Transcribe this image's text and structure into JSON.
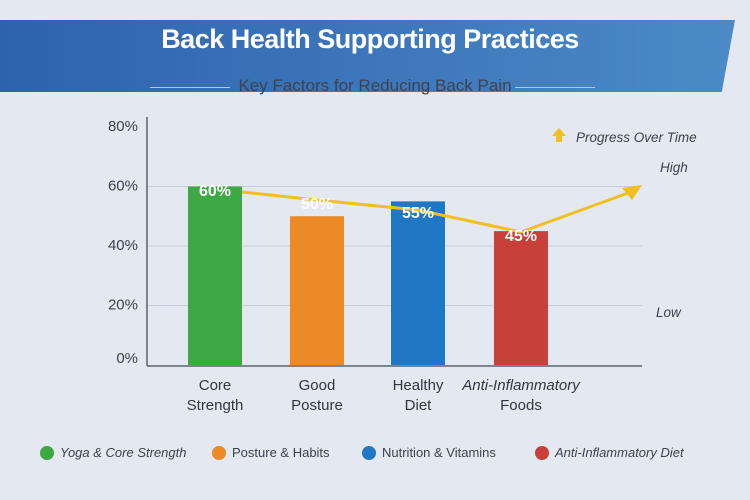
{
  "chart_data": {
    "type": "bar",
    "title": "Back Health Supporting Practices",
    "subtitle": "Key Factors for Reducing Back Pain",
    "categories": [
      [
        "Core",
        "Strength"
      ],
      [
        "Good",
        "Posture"
      ],
      [
        "Healthy",
        "Diet"
      ],
      [
        "Anti-Inflammatory",
        "Foods"
      ]
    ],
    "values": [
      60,
      50,
      55,
      45
    ],
    "data_labels": [
      "60%",
      "50%",
      "55%",
      "45%"
    ],
    "colors": [
      "#3ea845",
      "#ec8a25",
      "#2078c4",
      "#c8403a"
    ],
    "yticks": [
      "0%",
      "20%",
      "40%",
      "60%",
      "80%"
    ],
    "ylim": [
      0,
      80
    ],
    "grid": true,
    "trend": {
      "label": "Progress Over Time",
      "high": "High",
      "low": "Low",
      "color": "#f0c020"
    },
    "legend": {
      "placement": "bottom",
      "items": [
        "Yoga & Core Strength",
        "Posture & Habits",
        "Nutrition & Vitamins",
        "Anti-Inflammatory Diet"
      ]
    }
  }
}
